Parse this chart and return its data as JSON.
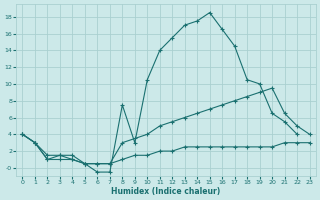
{
  "xlabel": "Humidex (Indice chaleur)",
  "bg_color": "#cce9e9",
  "grid_color": "#aad0d0",
  "line_color": "#1a7070",
  "xlim": [
    -0.5,
    23.5
  ],
  "ylim": [
    -1.0,
    19.5
  ],
  "xticks": [
    0,
    1,
    2,
    3,
    4,
    5,
    6,
    7,
    8,
    9,
    10,
    11,
    12,
    13,
    14,
    15,
    16,
    17,
    18,
    19,
    20,
    21,
    22,
    23
  ],
  "yticks": [
    0,
    2,
    4,
    6,
    8,
    10,
    12,
    14,
    16,
    18
  ],
  "ytick_labels": [
    "-0",
    "2",
    "4",
    "6",
    "8",
    "10",
    "12",
    "14",
    "16",
    "18"
  ],
  "lines": [
    {
      "x": [
        0,
        1,
        2,
        3,
        4,
        5,
        6,
        7,
        8,
        9,
        10,
        11,
        12,
        13,
        14,
        15,
        16,
        17,
        18,
        19,
        20,
        21,
        22
      ],
      "y": [
        4,
        3,
        1,
        1.5,
        1,
        0.5,
        -0.5,
        -0.5,
        7.5,
        3,
        10.5,
        14,
        15.5,
        17,
        17.5,
        18.5,
        16.5,
        14.5,
        10.5,
        10,
        6.5,
        5.5,
        4
      ]
    },
    {
      "x": [
        0,
        1,
        2,
        3,
        4,
        5,
        6,
        7,
        8,
        9,
        10,
        11,
        12,
        13,
        14,
        15,
        16,
        17,
        18,
        19,
        20,
        21,
        22,
        23
      ],
      "y": [
        4,
        3,
        1.5,
        1.5,
        1.5,
        0.5,
        0.5,
        0.5,
        3,
        3.5,
        4,
        5,
        5.5,
        6,
        6.5,
        7,
        7.5,
        8,
        8.5,
        9,
        9.5,
        6.5,
        5,
        4
      ]
    },
    {
      "x": [
        0,
        1,
        2,
        3,
        4,
        5,
        6,
        7,
        8,
        9,
        10,
        11,
        12,
        13,
        14,
        15,
        16,
        17,
        18,
        19,
        20,
        21,
        22,
        23
      ],
      "y": [
        4,
        3,
        1,
        1,
        1,
        0.5,
        0.5,
        0.5,
        1,
        1.5,
        1.5,
        2,
        2,
        2.5,
        2.5,
        2.5,
        2.5,
        2.5,
        2.5,
        2.5,
        2.5,
        3,
        3,
        3
      ]
    }
  ]
}
